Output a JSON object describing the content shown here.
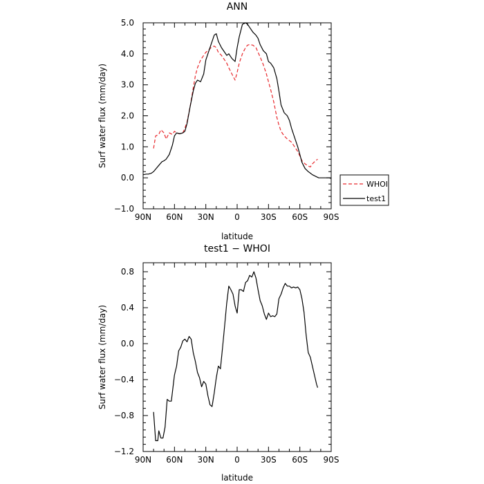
{
  "chart_data": [
    {
      "type": "line",
      "title": "ANN",
      "xlabel": "latitude",
      "ylabel": "Surf water flux (mm/day)",
      "xlim": [
        90,
        -90
      ],
      "ylim": [
        -1.0,
        5.0
      ],
      "x_ticks": [
        90,
        60,
        30,
        0,
        -30,
        -60,
        -90
      ],
      "x_tick_labels": [
        "90N",
        "60N",
        "30N",
        "0",
        "30S",
        "60S",
        "90S"
      ],
      "y_ticks": [
        -1.0,
        0.0,
        1.0,
        2.0,
        3.0,
        4.0,
        5.0
      ],
      "y_tick_labels": [
        "−1.0",
        "0.0",
        "1.0",
        "2.0",
        "3.0",
        "4.0",
        "5.0"
      ],
      "grid": false,
      "legend": {
        "position": "right-outside"
      },
      "series": [
        {
          "name": "WHOI",
          "color": "#e8262a",
          "dash": "dashed",
          "x": [
            80,
            78,
            75,
            73,
            70,
            68,
            65,
            62,
            60,
            58,
            55,
            52,
            50,
            48,
            45,
            42,
            40,
            38,
            35,
            32,
            30,
            28,
            25,
            22,
            20,
            18,
            15,
            12,
            10,
            8,
            5,
            2,
            0,
            -2,
            -5,
            -8,
            -10,
            -12,
            -15,
            -18,
            -20,
            -22,
            -25,
            -28,
            -30,
            -32,
            -35,
            -38,
            -40,
            -42,
            -45,
            -48,
            -50,
            -52,
            -55,
            -58,
            -60,
            -62,
            -65,
            -68,
            -70,
            -72,
            -75,
            -77
          ],
          "y": [
            0.95,
            1.35,
            1.4,
            1.55,
            1.45,
            1.25,
            1.45,
            1.4,
            1.5,
            1.45,
            1.42,
            1.45,
            1.6,
            1.8,
            2.3,
            2.9,
            3.3,
            3.55,
            3.8,
            3.95,
            4.05,
            4.1,
            4.2,
            4.25,
            4.2,
            4.05,
            3.95,
            3.8,
            3.7,
            3.55,
            3.35,
            3.15,
            3.4,
            3.7,
            4.0,
            4.2,
            4.28,
            4.3,
            4.28,
            4.2,
            4.05,
            3.9,
            3.65,
            3.35,
            3.1,
            2.85,
            2.45,
            1.95,
            1.7,
            1.5,
            1.35,
            1.25,
            1.2,
            1.15,
            1.0,
            0.85,
            0.7,
            0.55,
            0.45,
            0.38,
            0.35,
            0.45,
            0.55,
            0.6
          ]
        },
        {
          "name": "test1",
          "color": "#000000",
          "dash": "solid",
          "x": [
            90,
            87,
            85,
            82,
            80,
            78,
            75,
            72,
            70,
            68,
            65,
            62,
            60,
            58,
            55,
            52,
            50,
            48,
            45,
            42,
            40,
            38,
            35,
            32,
            30,
            28,
            25,
            22,
            20,
            18,
            15,
            12,
            10,
            8,
            5,
            2,
            0,
            -2,
            -5,
            -8,
            -10,
            -12,
            -15,
            -18,
            -20,
            -22,
            -25,
            -28,
            -30,
            -32,
            -35,
            -38,
            -40,
            -42,
            -45,
            -48,
            -50,
            -52,
            -55,
            -58,
            -60,
            -62,
            -65,
            -68,
            -70,
            -72,
            -75,
            -78,
            -80,
            -83,
            -85,
            -88,
            -90
          ],
          "y": [
            0.1,
            0.12,
            0.12,
            0.15,
            0.2,
            0.28,
            0.4,
            0.52,
            0.55,
            0.6,
            0.75,
            1.05,
            1.35,
            1.45,
            1.42,
            1.45,
            1.5,
            1.75,
            2.3,
            2.8,
            3.05,
            3.15,
            3.1,
            3.35,
            3.8,
            4.0,
            4.3,
            4.6,
            4.65,
            4.4,
            4.2,
            4.05,
            3.95,
            4.0,
            3.85,
            3.75,
            4.2,
            4.55,
            4.95,
            5.0,
            4.95,
            4.85,
            4.7,
            4.6,
            4.5,
            4.3,
            4.1,
            4.0,
            3.75,
            3.7,
            3.55,
            3.2,
            2.8,
            2.35,
            2.1,
            2.0,
            1.85,
            1.6,
            1.3,
            1.0,
            0.75,
            0.5,
            0.3,
            0.2,
            0.15,
            0.1,
            0.05,
            0.0,
            0.0,
            0.0,
            0.0,
            0.0,
            -0.02
          ]
        }
      ]
    },
    {
      "type": "line",
      "title": "test1 − WHOI",
      "xlabel": "latitude",
      "ylabel": "Surf water flux (mm/day)",
      "xlim": [
        90,
        -90
      ],
      "ylim": [
        -1.2,
        0.9
      ],
      "x_ticks": [
        90,
        60,
        30,
        0,
        -30,
        -60,
        -90
      ],
      "x_tick_labels": [
        "90N",
        "60N",
        "30N",
        "0",
        "30S",
        "60S",
        "90S"
      ],
      "y_ticks": [
        -1.2,
        -0.8,
        -0.4,
        0.0,
        0.4,
        0.8
      ],
      "y_tick_labels": [
        "−1.2",
        "−0.8",
        "−0.4",
        "0.0",
        "0.4",
        "0.8"
      ],
      "grid": false,
      "series": [
        {
          "color": "#000000",
          "dash": "solid",
          "x": [
            80,
            78,
            76,
            75,
            73,
            71,
            69,
            67,
            65,
            63,
            60,
            58,
            56,
            54,
            52,
            50,
            48,
            46,
            44,
            42,
            40,
            38,
            36,
            34,
            32,
            30,
            28,
            26,
            24,
            22,
            20,
            18,
            16,
            14,
            12,
            10,
            8,
            6,
            4,
            2,
            0,
            -2,
            -4,
            -6,
            -8,
            -10,
            -12,
            -14,
            -16,
            -18,
            -20,
            -22,
            -24,
            -26,
            -28,
            -30,
            -32,
            -34,
            -36,
            -38,
            -40,
            -42,
            -44,
            -46,
            -48,
            -50,
            -52,
            -54,
            -56,
            -58,
            -60,
            -62,
            -64,
            -66,
            -68,
            -70,
            -72,
            -74,
            -76,
            -77
          ],
          "y": [
            -0.76,
            -1.08,
            -1.08,
            -0.97,
            -1.05,
            -1.05,
            -0.93,
            -0.62,
            -0.64,
            -0.64,
            -0.35,
            -0.25,
            -0.08,
            -0.04,
            0.03,
            0.05,
            0.02,
            0.08,
            0.05,
            -0.1,
            -0.2,
            -0.32,
            -0.38,
            -0.48,
            -0.42,
            -0.45,
            -0.58,
            -0.68,
            -0.7,
            -0.55,
            -0.38,
            -0.25,
            -0.28,
            -0.05,
            0.2,
            0.45,
            0.64,
            0.6,
            0.55,
            0.42,
            0.34,
            0.6,
            0.6,
            0.58,
            0.68,
            0.7,
            0.76,
            0.74,
            0.8,
            0.73,
            0.6,
            0.48,
            0.42,
            0.33,
            0.27,
            0.34,
            0.3,
            0.31,
            0.3,
            0.33,
            0.5,
            0.55,
            0.62,
            0.67,
            0.64,
            0.64,
            0.62,
            0.63,
            0.62,
            0.63,
            0.6,
            0.5,
            0.35,
            0.1,
            -0.1,
            -0.15,
            -0.25,
            -0.35,
            -0.45,
            -0.49
          ]
        }
      ]
    }
  ]
}
